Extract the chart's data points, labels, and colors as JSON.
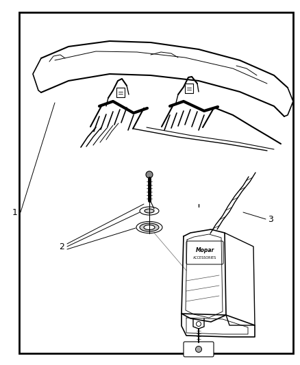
{
  "bg_color": "#ffffff",
  "border_color": "#000000",
  "line_color": "#000000",
  "fig_width": 4.38,
  "fig_height": 5.33,
  "dpi": 100,
  "label1": "1",
  "label2": "2",
  "label3": "3"
}
